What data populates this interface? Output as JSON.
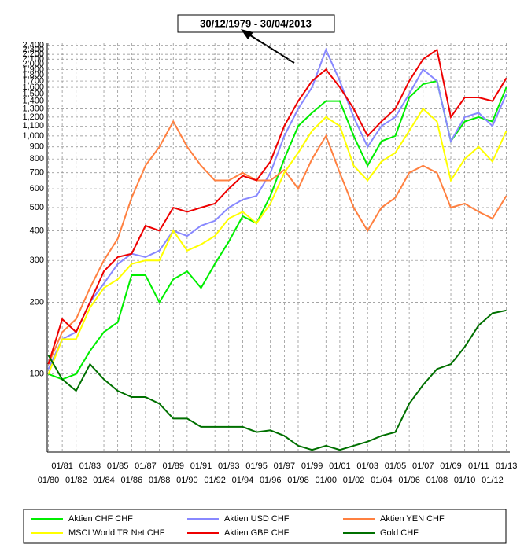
{
  "chart_data": {
    "type": "line",
    "annotation": "30/12/1979 - 30/04/2013",
    "x": [
      "1980-01",
      "1981-01",
      "1982-01",
      "1983-01",
      "1984-01",
      "1985-01",
      "1986-01",
      "1987-01",
      "1988-01",
      "1989-01",
      "1990-01",
      "1991-01",
      "1992-01",
      "1993-01",
      "1994-01",
      "1995-01",
      "1996-01",
      "1997-01",
      "1998-01",
      "1999-01",
      "2000-01",
      "2001-01",
      "2002-01",
      "2003-01",
      "2004-01",
      "2005-01",
      "2006-01",
      "2007-01",
      "2008-01",
      "2009-01",
      "2010-01",
      "2011-01",
      "2012-01",
      "2013-01"
    ],
    "series": [
      {
        "name": "Aktien CHF CHF",
        "color": "#00ee00",
        "values": [
          100,
          95,
          100,
          125,
          150,
          165,
          260,
          260,
          200,
          250,
          270,
          230,
          290,
          360,
          460,
          430,
          560,
          800,
          1100,
          1250,
          1400,
          1400,
          1000,
          750,
          950,
          1000,
          1450,
          1650,
          1700,
          950,
          1150,
          1200,
          1150,
          1600
        ]
      },
      {
        "name": "Aktien USD CHF",
        "color": "#8888ff",
        "values": [
          105,
          140,
          150,
          200,
          240,
          290,
          320,
          310,
          330,
          400,
          380,
          420,
          440,
          500,
          540,
          560,
          700,
          1000,
          1300,
          1600,
          2300,
          1700,
          1200,
          900,
          1100,
          1200,
          1500,
          1900,
          1700,
          950,
          1200,
          1250,
          1100,
          1500
        ]
      },
      {
        "name": "Aktien YEN CHF",
        "color": "#ff8040",
        "values": [
          110,
          150,
          170,
          230,
          300,
          370,
          550,
          750,
          900,
          1150,
          900,
          750,
          650,
          650,
          700,
          650,
          650,
          720,
          600,
          800,
          1000,
          700,
          500,
          400,
          500,
          550,
          700,
          750,
          700,
          500,
          520,
          480,
          450,
          560
        ]
      },
      {
        "name": "MSCI World TR Net CHF",
        "color": "#ffff00",
        "values": [
          100,
          140,
          140,
          190,
          230,
          250,
          290,
          300,
          300,
          400,
          330,
          350,
          380,
          450,
          480,
          430,
          520,
          700,
          850,
          1050,
          1200,
          1100,
          750,
          650,
          780,
          850,
          1050,
          1300,
          1150,
          650,
          800,
          900,
          780,
          1050
        ]
      },
      {
        "name": "Aktien GBP CHF",
        "color": "#ee0000",
        "values": [
          110,
          170,
          150,
          200,
          270,
          310,
          320,
          420,
          400,
          500,
          480,
          500,
          520,
          600,
          680,
          650,
          780,
          1100,
          1400,
          1700,
          1900,
          1600,
          1300,
          1000,
          1150,
          1300,
          1700,
          2100,
          2300,
          1200,
          1450,
          1450,
          1400,
          1750
        ]
      },
      {
        "name": "Gold CHF",
        "color": "#007000",
        "values": [
          120,
          95,
          85,
          110,
          95,
          85,
          80,
          80,
          75,
          65,
          65,
          60,
          60,
          60,
          60,
          57,
          58,
          55,
          50,
          48,
          50,
          48,
          50,
          52,
          55,
          57,
          75,
          90,
          105,
          110,
          130,
          160,
          180,
          185
        ]
      }
    ],
    "xlim": [
      "1979-12",
      "2013-04"
    ],
    "xticks": [
      {
        "value": "1980-01",
        "label": "01/80"
      },
      {
        "value": "1981-01",
        "label": "01/81"
      },
      {
        "value": "1982-01",
        "label": "01/82"
      },
      {
        "value": "1983-01",
        "label": "01/83"
      },
      {
        "value": "1984-01",
        "label": "01/84"
      },
      {
        "value": "1985-01",
        "label": "01/85"
      },
      {
        "value": "1986-01",
        "label": "01/86"
      },
      {
        "value": "1987-01",
        "label": "01/87"
      },
      {
        "value": "1988-01",
        "label": "01/88"
      },
      {
        "value": "1989-01",
        "label": "01/89"
      },
      {
        "value": "1990-01",
        "label": "01/90"
      },
      {
        "value": "1991-01",
        "label": "01/91"
      },
      {
        "value": "1992-01",
        "label": "01/92"
      },
      {
        "value": "1993-01",
        "label": "01/93"
      },
      {
        "value": "1994-01",
        "label": "01/94"
      },
      {
        "value": "1995-01",
        "label": "01/95"
      },
      {
        "value": "1996-01",
        "label": "01/96"
      },
      {
        "value": "1997-01",
        "label": "01/97"
      },
      {
        "value": "1998-01",
        "label": "01/98"
      },
      {
        "value": "1999-01",
        "label": "01/99"
      },
      {
        "value": "2000-01",
        "label": "01/00"
      },
      {
        "value": "2001-01",
        "label": "01/01"
      },
      {
        "value": "2002-01",
        "label": "01/02"
      },
      {
        "value": "2003-01",
        "label": "01/03"
      },
      {
        "value": "2004-01",
        "label": "01/04"
      },
      {
        "value": "2005-01",
        "label": "01/05"
      },
      {
        "value": "2006-01",
        "label": "01/06"
      },
      {
        "value": "2007-01",
        "label": "01/07"
      },
      {
        "value": "2008-01",
        "label": "01/08"
      },
      {
        "value": "2009-01",
        "label": "01/09"
      },
      {
        "value": "2010-01",
        "label": "01/10"
      },
      {
        "value": "2011-01",
        "label": "01/11"
      },
      {
        "value": "2012-01",
        "label": "01/12"
      },
      {
        "value": "2013-01",
        "label": "01/13"
      }
    ],
    "ylim": [
      47,
      2450
    ],
    "yticks": [
      100,
      200,
      300,
      400,
      500,
      600,
      700,
      800,
      900,
      {
        "value": 1000,
        "label": "1,000"
      },
      {
        "value": 1100,
        "label": "1,100"
      },
      {
        "value": 1200,
        "label": "1,200"
      },
      {
        "value": 1300,
        "label": "1,300"
      },
      {
        "value": 1400,
        "label": "1,400"
      },
      {
        "value": 1500,
        "label": "1,500"
      },
      {
        "value": 1600,
        "label": "1,600"
      },
      {
        "value": 1700,
        "label": "1,700"
      },
      {
        "value": 1800,
        "label": "1,800"
      },
      {
        "value": 1900,
        "label": "1,900"
      },
      {
        "value": 2000,
        "label": "2,000"
      },
      {
        "value": 2100,
        "label": "2,100"
      },
      {
        "value": 2200,
        "label": "2,200"
      },
      {
        "value": 2300,
        "label": "2,300"
      },
      {
        "value": 2400,
        "label": "2,400"
      }
    ],
    "log_scale": true,
    "grid": true,
    "legend_position": "bottom"
  }
}
